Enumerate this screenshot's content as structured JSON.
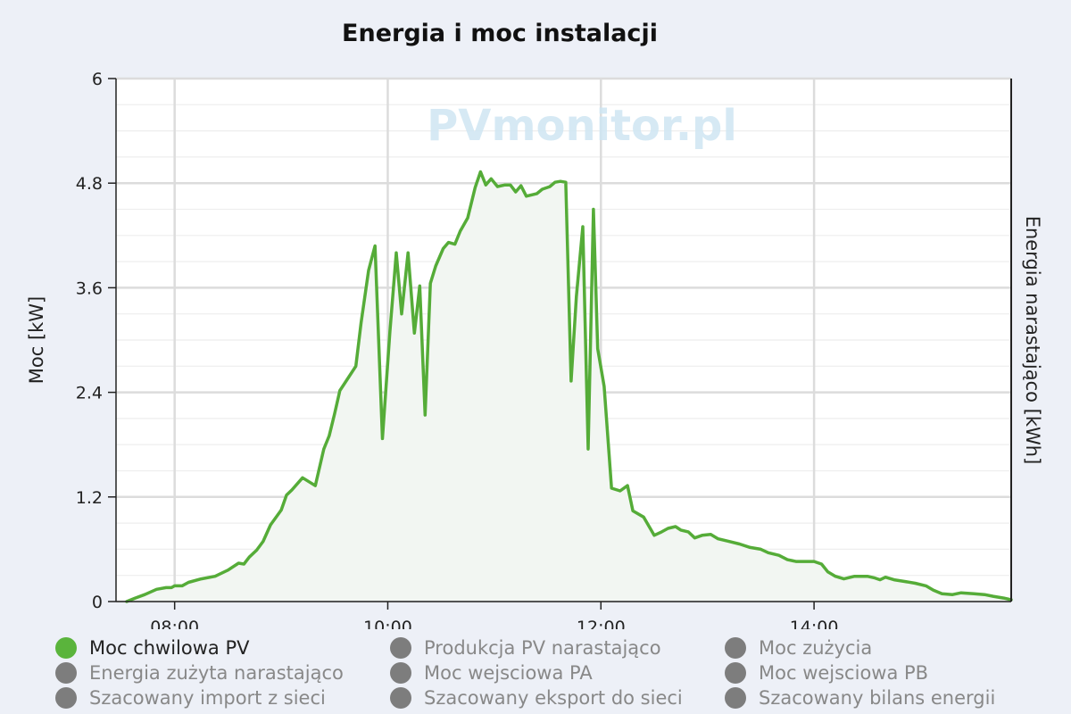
{
  "chart_data": {
    "type": "area",
    "title": "Energia i moc instalacji",
    "ylabel": "Moc [kW]",
    "y2label": "Energia narastająco [kWh]",
    "watermark": "PVmonitor.pl",
    "ylim": [
      0,
      6
    ],
    "yticks": [
      "0",
      "1.2",
      "2.4",
      "3.6",
      "4.8",
      "6"
    ],
    "xticks": [
      "08:00",
      "10:00",
      "12:00",
      "14:00"
    ],
    "xlim_hours": [
      7.45,
      15.85
    ],
    "grid": true,
    "series": [
      {
        "name": "Moc chwilowa PV",
        "color": "#55ac38",
        "points": [
          [
            7.55,
            0.0
          ],
          [
            7.63,
            0.04
          ],
          [
            7.72,
            0.08
          ],
          [
            7.83,
            0.14
          ],
          [
            7.92,
            0.16
          ],
          [
            7.97,
            0.16
          ],
          [
            8.0,
            0.18
          ],
          [
            8.07,
            0.18
          ],
          [
            8.13,
            0.22
          ],
          [
            8.25,
            0.26
          ],
          [
            8.38,
            0.29
          ],
          [
            8.5,
            0.36
          ],
          [
            8.6,
            0.44
          ],
          [
            8.65,
            0.43
          ],
          [
            8.7,
            0.51
          ],
          [
            8.77,
            0.59
          ],
          [
            8.83,
            0.69
          ],
          [
            8.9,
            0.88
          ],
          [
            9.0,
            1.05
          ],
          [
            9.05,
            1.22
          ],
          [
            9.1,
            1.28
          ],
          [
            9.2,
            1.42
          ],
          [
            9.28,
            1.36
          ],
          [
            9.32,
            1.33
          ],
          [
            9.4,
            1.75
          ],
          [
            9.45,
            1.9
          ],
          [
            9.5,
            2.15
          ],
          [
            9.55,
            2.42
          ],
          [
            9.62,
            2.55
          ],
          [
            9.7,
            2.7
          ],
          [
            9.75,
            3.2
          ],
          [
            9.82,
            3.8
          ],
          [
            9.88,
            4.08
          ],
          [
            9.95,
            1.87
          ],
          [
            10.02,
            3.1
          ],
          [
            10.08,
            4.0
          ],
          [
            10.13,
            3.3
          ],
          [
            10.19,
            4.0
          ],
          [
            10.25,
            3.08
          ],
          [
            10.3,
            3.62
          ],
          [
            10.35,
            2.14
          ],
          [
            10.4,
            3.65
          ],
          [
            10.45,
            3.85
          ],
          [
            10.52,
            4.05
          ],
          [
            10.57,
            4.12
          ],
          [
            10.63,
            4.1
          ],
          [
            10.68,
            4.25
          ],
          [
            10.75,
            4.4
          ],
          [
            10.82,
            4.75
          ],
          [
            10.87,
            4.93
          ],
          [
            10.92,
            4.78
          ],
          [
            10.97,
            4.85
          ],
          [
            11.03,
            4.76
          ],
          [
            11.1,
            4.78
          ],
          [
            11.15,
            4.78
          ],
          [
            11.2,
            4.7
          ],
          [
            11.25,
            4.77
          ],
          [
            11.3,
            4.65
          ],
          [
            11.4,
            4.68
          ],
          [
            11.45,
            4.73
          ],
          [
            11.52,
            4.76
          ],
          [
            11.57,
            4.81
          ],
          [
            11.62,
            4.82
          ],
          [
            11.67,
            4.81
          ],
          [
            11.72,
            2.53
          ],
          [
            11.77,
            3.5
          ],
          [
            11.83,
            4.3
          ],
          [
            11.88,
            1.75
          ],
          [
            11.93,
            4.5
          ],
          [
            11.97,
            2.9
          ],
          [
            12.03,
            2.47
          ],
          [
            12.1,
            1.3
          ],
          [
            12.18,
            1.27
          ],
          [
            12.25,
            1.33
          ],
          [
            12.3,
            1.04
          ],
          [
            12.4,
            0.97
          ],
          [
            12.5,
            0.76
          ],
          [
            12.57,
            0.8
          ],
          [
            12.63,
            0.84
          ],
          [
            12.7,
            0.86
          ],
          [
            12.75,
            0.82
          ],
          [
            12.82,
            0.8
          ],
          [
            12.88,
            0.73
          ],
          [
            12.95,
            0.76
          ],
          [
            13.03,
            0.77
          ],
          [
            13.1,
            0.72
          ],
          [
            13.2,
            0.69
          ],
          [
            13.3,
            0.66
          ],
          [
            13.4,
            0.62
          ],
          [
            13.5,
            0.6
          ],
          [
            13.57,
            0.56
          ],
          [
            13.67,
            0.53
          ],
          [
            13.75,
            0.48
          ],
          [
            13.83,
            0.46
          ],
          [
            13.92,
            0.46
          ],
          [
            14.0,
            0.46
          ],
          [
            14.07,
            0.43
          ],
          [
            14.13,
            0.34
          ],
          [
            14.2,
            0.29
          ],
          [
            14.28,
            0.26
          ],
          [
            14.38,
            0.29
          ],
          [
            14.5,
            0.29
          ],
          [
            14.57,
            0.27
          ],
          [
            14.62,
            0.25
          ],
          [
            14.67,
            0.28
          ],
          [
            14.75,
            0.25
          ],
          [
            14.85,
            0.23
          ],
          [
            14.95,
            0.21
          ],
          [
            15.05,
            0.18
          ],
          [
            15.12,
            0.13
          ],
          [
            15.2,
            0.09
          ],
          [
            15.3,
            0.08
          ],
          [
            15.38,
            0.1
          ],
          [
            15.5,
            0.09
          ],
          [
            15.6,
            0.08
          ],
          [
            15.68,
            0.06
          ],
          [
            15.78,
            0.04
          ],
          [
            15.85,
            0.02
          ]
        ]
      }
    ]
  },
  "legend": [
    {
      "label": "Moc chwilowa PV",
      "active": true
    },
    {
      "label": "Produkcja PV narastająco",
      "active": false
    },
    {
      "label": "Moc zużycia",
      "active": false
    },
    {
      "label": "Energia zużyta narastająco",
      "active": false
    },
    {
      "label": "Moc wejsciowa PA",
      "active": false
    },
    {
      "label": "Moc wejsciowa PB",
      "active": false
    },
    {
      "label": "Szacowany import z sieci",
      "active": false
    },
    {
      "label": "Szacowany eksport do sieci",
      "active": false
    },
    {
      "label": "Szacowany bilans energii",
      "active": false
    }
  ]
}
